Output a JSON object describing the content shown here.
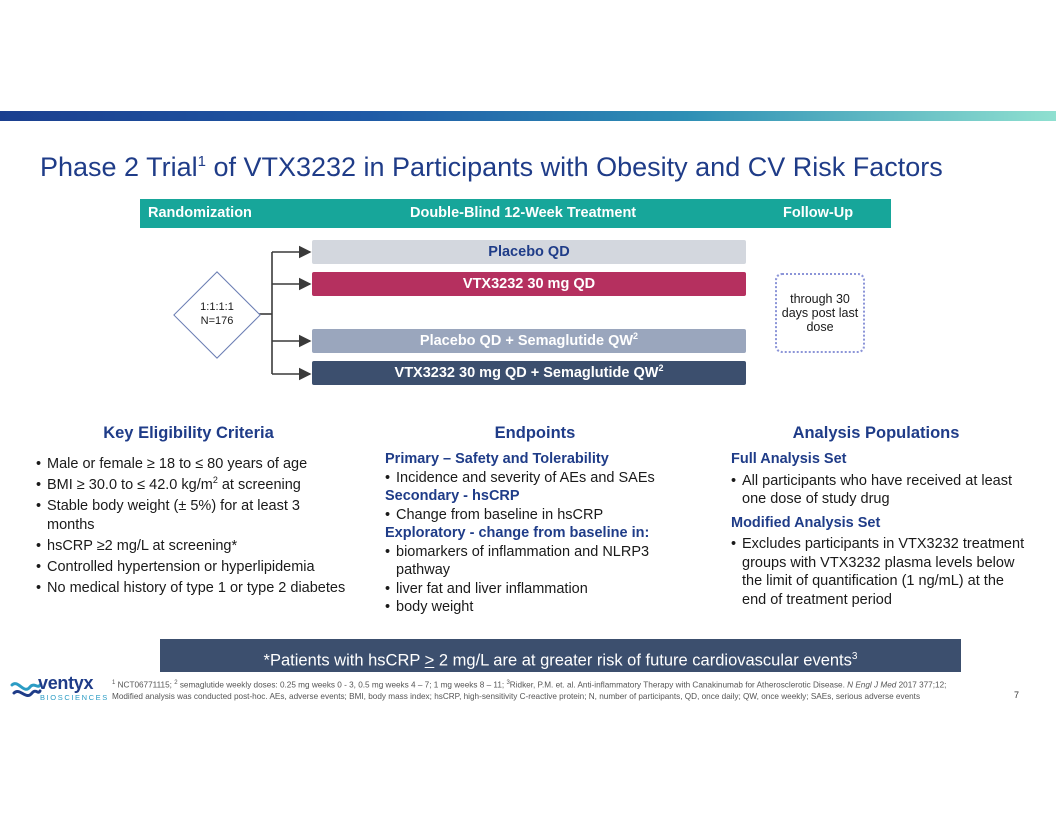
{
  "title": {
    "pre": "Phase 2 Trial",
    "sup": "1",
    "post": " of VTX3232 in Participants with Obesity and CV Risk Factors"
  },
  "phases": {
    "randomization": "Randomization",
    "treatment": "Double-Blind 12-Week Treatment",
    "followup": "Follow-Up"
  },
  "randomization": {
    "ratio": "1:1:1:1",
    "n": "N=176"
  },
  "arms": [
    {
      "label": "Placebo QD",
      "sup": ""
    },
    {
      "label": "VTX3232 30 mg QD",
      "sup": ""
    },
    {
      "label": "Placebo QD + Semaglutide QW",
      "sup": "2"
    },
    {
      "label": "VTX3232 30 mg QD + Semaglutide QW",
      "sup": "2"
    }
  ],
  "followup_box": "through 30 days post last dose",
  "eligibility": {
    "heading": "Key Eligibility Criteria",
    "items": [
      "Male or female ≥ 18 to ≤ 80 years of age",
      "BMI ≥ 30.0 to ≤ 42.0 kg/m",
      "Stable body weight (± 5%) for at least 3 months",
      "hsCRP ≥2 mg/L at screening*",
      "Controlled hypertension or hyperlipidemia",
      "No medical history of type 1 or type 2 diabetes"
    ],
    "bmi_sup": "2",
    "bmi_suffix": " at screening"
  },
  "endpoints": {
    "heading": "Endpoints",
    "primary": "Primary – Safety and Tolerability",
    "primary_items": [
      "Incidence and severity of AEs and SAEs"
    ],
    "secondary": "Secondary - hsCRP",
    "secondary_items": [
      "Change from baseline in hsCRP"
    ],
    "exploratory": "Exploratory - change from baseline in:",
    "exploratory_items": [
      "biomarkers of inflammation and NLRP3 pathway",
      "liver fat and liver inflammation",
      "body weight"
    ]
  },
  "analysis": {
    "heading": "Analysis Populations",
    "fas": "Full Analysis Set",
    "fas_items": [
      "All participants who have received at least one dose of study drug"
    ],
    "mas": "Modified Analysis Set",
    "mas_items": [
      "Excludes participants in VTX3232 treatment groups with VTX3232 plasma levels below the limit of quantification (1 ng/mL) at the end of treatment period"
    ]
  },
  "callout": {
    "star": "*",
    "pre": "Patients with hsCRP ",
    "symbol": ">",
    "post": " 2 mg/L are at greater risk of future cardiovascular events",
    "sup": "3"
  },
  "logo": {
    "word": "ventyx",
    "sub": "BIOSCIENCES"
  },
  "footnote": {
    "s1": "1",
    "t1": " NCT06771115; ",
    "s2": "2",
    "t2": " semaglutide weekly doses: 0.25 mg weeks 0 - 3, 0.5 mg weeks 4 – 7; 1 mg  weeks 8 – 11; ",
    "s3": "3",
    "t3": "Ridker, P.M. et. al. Anti-inflammatory Therapy with Canakinumab for Atherosclerotic Disease. ",
    "journal": "N Engl J Med",
    "t4": " 2017 377;12;",
    "line2": "Modified analysis was conducted post-hoc. AEs, adverse events; BMI, body mass index; hsCRP, high-sensitivity C-reactive protein; N, number of participants, QD, once daily; QW, once weekly; SAEs, serious adverse events"
  },
  "page_number": "7",
  "colors": {
    "navy": "#1f3c88",
    "teal": "#17a69a",
    "magenta": "#b5305f",
    "slate": "#3c4f6e",
    "grey": "#9aa6bd",
    "light": "#d3d7de"
  }
}
